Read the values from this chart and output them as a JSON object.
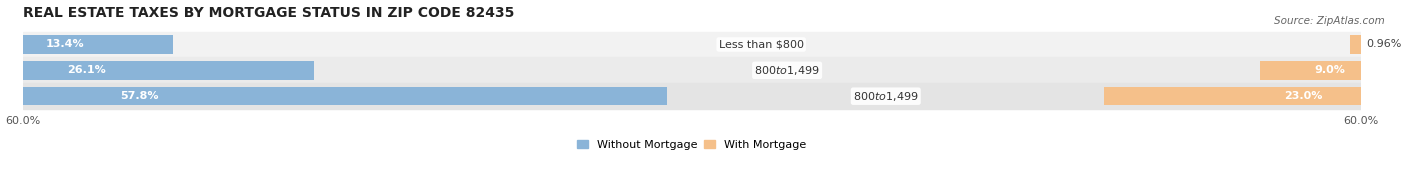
{
  "title": "REAL ESTATE TAXES BY MORTGAGE STATUS IN ZIP CODE 82435",
  "source": "Source: ZipAtlas.com",
  "rows": [
    {
      "label": "Less than $800",
      "without": 13.4,
      "with": 0.96
    },
    {
      "label": "$800 to $1,499",
      "without": 26.1,
      "with": 9.0
    },
    {
      "label": "$800 to $1,499",
      "without": 57.8,
      "with": 23.0
    }
  ],
  "xlim": 60.0,
  "color_without": "#8ab4d8",
  "color_with": "#f5c08a",
  "color_without_dark": "#6a9fc8",
  "color_with_dark": "#e8a060",
  "row_colors": [
    "#f0f0f0",
    "#e8e8e8",
    "#e0e0e0"
  ],
  "bar_height": 0.72,
  "title_fontsize": 10,
  "label_fontsize": 8,
  "tick_fontsize": 8,
  "source_fontsize": 7.5,
  "legend_fontsize": 8,
  "inside_label_threshold": 8.0
}
